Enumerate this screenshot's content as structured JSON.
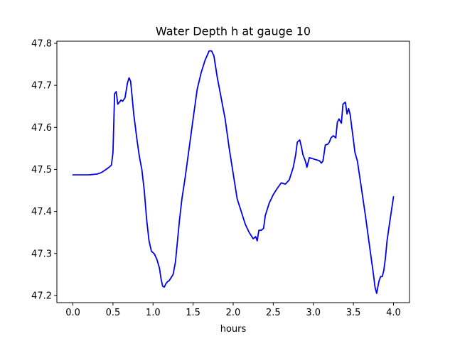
{
  "chart_data": {
    "type": "line",
    "title": "Water Depth h at gauge 10",
    "xlabel": "hours",
    "ylabel": "",
    "xlim": [
      -0.2,
      4.2
    ],
    "ylim": [
      47.183,
      47.805
    ],
    "xticks": [
      0.0,
      0.5,
      1.0,
      1.5,
      2.0,
      2.5,
      3.0,
      3.5,
      4.0
    ],
    "xtick_labels": [
      "0.0",
      "0.5",
      "1.0",
      "1.5",
      "2.0",
      "2.5",
      "3.0",
      "3.5",
      "4.0"
    ],
    "yticks": [
      47.2,
      47.3,
      47.4,
      47.5,
      47.6,
      47.7,
      47.8
    ],
    "ytick_labels": [
      "47.2",
      "47.3",
      "47.4",
      "47.5",
      "47.6",
      "47.7",
      "47.8"
    ],
    "grid": false,
    "series": [
      {
        "color": "#0000ee",
        "x": [
          0.0,
          0.1,
          0.2,
          0.3,
          0.35,
          0.4,
          0.45,
          0.48,
          0.5,
          0.52,
          0.54,
          0.56,
          0.58,
          0.6,
          0.62,
          0.65,
          0.68,
          0.7,
          0.72,
          0.74,
          0.76,
          0.78,
          0.8,
          0.83,
          0.86,
          0.89,
          0.92,
          0.95,
          0.98,
          1.0,
          1.02,
          1.05,
          1.08,
          1.1,
          1.12,
          1.14,
          1.16,
          1.18,
          1.2,
          1.25,
          1.28,
          1.3,
          1.33,
          1.36,
          1.4,
          1.45,
          1.5,
          1.55,
          1.6,
          1.65,
          1.7,
          1.73,
          1.76,
          1.8,
          1.85,
          1.9,
          1.95,
          2.0,
          2.05,
          2.1,
          2.15,
          2.2,
          2.25,
          2.28,
          2.3,
          2.32,
          2.35,
          2.38,
          2.4,
          2.45,
          2.5,
          2.55,
          2.6,
          2.65,
          2.7,
          2.75,
          2.78,
          2.8,
          2.83,
          2.85,
          2.87,
          2.9,
          2.92,
          2.95,
          3.0,
          3.05,
          3.08,
          3.1,
          3.12,
          3.15,
          3.18,
          3.2,
          3.22,
          3.25,
          3.28,
          3.3,
          3.32,
          3.35,
          3.37,
          3.4,
          3.42,
          3.44,
          3.46,
          3.48,
          3.5,
          3.52,
          3.55,
          3.6,
          3.65,
          3.7,
          3.75,
          3.77,
          3.79,
          3.8,
          3.82,
          3.84,
          3.86,
          3.88,
          3.9,
          3.92,
          3.95,
          4.0
        ],
        "y": [
          47.487,
          47.487,
          47.487,
          47.489,
          47.492,
          47.498,
          47.505,
          47.51,
          47.54,
          47.68,
          47.685,
          47.655,
          47.66,
          47.665,
          47.662,
          47.67,
          47.705,
          47.718,
          47.71,
          47.67,
          47.63,
          47.6,
          47.57,
          47.53,
          47.5,
          47.45,
          47.38,
          47.33,
          47.305,
          47.302,
          47.298,
          47.285,
          47.265,
          47.24,
          47.222,
          47.22,
          47.228,
          47.233,
          47.235,
          47.25,
          47.28,
          47.32,
          47.38,
          47.43,
          47.48,
          47.55,
          47.62,
          47.69,
          47.73,
          47.76,
          47.782,
          47.782,
          47.77,
          47.72,
          47.67,
          47.62,
          47.55,
          47.49,
          47.43,
          47.4,
          47.37,
          47.35,
          47.335,
          47.34,
          47.33,
          47.355,
          47.355,
          47.36,
          47.39,
          47.42,
          47.44,
          47.455,
          47.468,
          47.465,
          47.475,
          47.505,
          47.535,
          47.565,
          47.57,
          47.555,
          47.535,
          47.52,
          47.505,
          47.528,
          47.525,
          47.522,
          47.52,
          47.515,
          47.52,
          47.558,
          47.56,
          47.565,
          47.575,
          47.58,
          47.575,
          47.612,
          47.62,
          47.61,
          47.655,
          47.66,
          47.632,
          47.645,
          47.63,
          47.6,
          47.57,
          47.54,
          47.52,
          47.455,
          47.39,
          47.32,
          47.25,
          47.22,
          47.205,
          47.215,
          47.235,
          47.245,
          47.245,
          47.26,
          47.29,
          47.33,
          47.37,
          47.435
        ]
      }
    ]
  }
}
